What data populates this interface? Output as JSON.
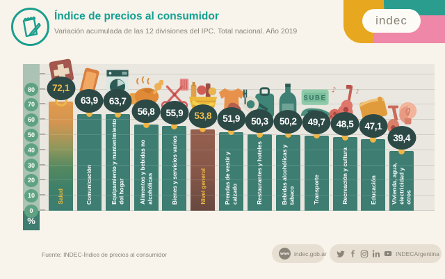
{
  "header": {
    "title": "Índice de precios al consumidor",
    "subtitle": "Variación acumulada de las 12 divisiones del IPC. Total nacional. Año 2019",
    "icon": "notepad-pencil-icon",
    "logo_text": "indec"
  },
  "chart_data": {
    "type": "bar",
    "title": "Índice de precios al consumidor",
    "subtitle": "Variación acumulada de las 12 divisiones del IPC. Total nacional. Año 2019",
    "unit": "%",
    "ylim": [
      0,
      100
    ],
    "yticks": [
      0,
      10,
      20,
      30,
      40,
      50,
      60,
      70,
      80
    ],
    "grid": true,
    "categories": [
      "Salud",
      "Comunicación",
      "Equipamiento y mantenimiento del hogar",
      "Alimentos y bebidas no alcohólicas",
      "Bienes y servicios varios",
      "Nivel general",
      "Prendas de vestir y calzado",
      "Restaurantes y hoteles",
      "Bebidas alcohólicas y tabaco",
      "Transporte",
      "Recreación y cultura",
      "Educación",
      "Vivienda, agua, electricidad y otros"
    ],
    "values": [
      72.1,
      63.9,
      63.7,
      56.8,
      55.9,
      53.8,
      51.9,
      50.3,
      50.2,
      49.7,
      48.5,
      47.1,
      39.4
    ],
    "value_labels": [
      "72,1",
      "63,9",
      "63,7",
      "56,8",
      "55,9",
      "53,8",
      "51,9",
      "50,3",
      "50,2",
      "49,7",
      "48,5",
      "47,1",
      "39,4"
    ],
    "icons": [
      "first-aid-kit-icon",
      "smartphone-icon",
      "washing-machine-icon",
      "roast-chicken-icon",
      "scissors-comb-icon",
      "grocery-basket-icon",
      "tshirt-shoe-icon",
      "suitcase-plate-icon",
      "wine-bottle-icon",
      "sube-card-car-icon",
      "guitar-ball-icon",
      "book-icon",
      "bulb-faucet-icon"
    ],
    "icon_texts": {
      "transporte_card": "SUBE"
    },
    "styles": [
      "salud",
      "",
      "",
      "",
      "",
      "general",
      "",
      "",
      "",
      "",
      "",
      "",
      ""
    ],
    "colors": {
      "bar": "#3d7d72",
      "bar_salud_top": "#e39a4d",
      "bar_general": "#8a594b",
      "dot": "#efb545",
      "badge_bg": "#2c4946",
      "badge_text": "#ffffff",
      "badge_text_highlight": "#f0bd4a",
      "label_highlight": "#eab93e",
      "plot_bg": "#e9e7e0",
      "axis_strip": "#aac3b4",
      "tick_badge": "#5fa282"
    },
    "legend": null,
    "xlabel": "",
    "ylabel": "%"
  },
  "footer": {
    "source": "Fuente: INDEC-Índice de precios al consumidor",
    "website_badge": {
      "icon_text": "www",
      "label": "indec.gob.ar"
    },
    "social_badge": {
      "icons": [
        "twitter-icon",
        "facebook-icon",
        "instagram-icon",
        "linkedin-icon",
        "youtube-icon"
      ],
      "label": "INDECArgentina"
    }
  }
}
